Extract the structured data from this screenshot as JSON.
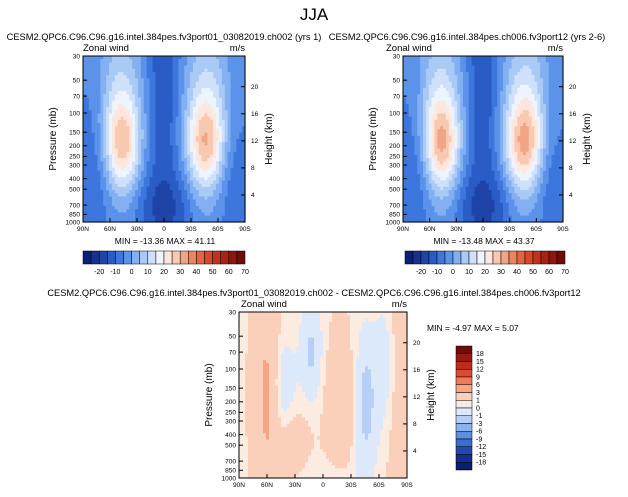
{
  "figure_title": "JJA",
  "chart_data": [
    {
      "type": "heatmap",
      "title": "CESM2.QPC6.C96.C96.g16.intel.384pes.fv3port01_03082019.ch002 (yrs 1)",
      "left_label": "Zonal wind",
      "right_label": "m/s",
      "xlabel": "",
      "ylabel": "Pressure (mb)",
      "y2label": "Height (km)",
      "x_ticks": [
        "90N",
        "60N",
        "30N",
        "0",
        "30S",
        "60S",
        "90S"
      ],
      "y_ticks": [
        "30",
        "50",
        "70",
        "100",
        "150",
        "200",
        "250",
        "300",
        "400",
        "500",
        "700",
        "850",
        "1000"
      ],
      "y2_ticks": [
        "20",
        "16",
        "12",
        "8",
        "4"
      ],
      "stats": "MIN = -13.36   MAX = 41.11",
      "colorbar_labels": [
        "-20",
        "-10",
        "0",
        "10",
        "20",
        "30",
        "40",
        "50",
        "60",
        "70"
      ],
      "contour_levels": [
        -25,
        -20,
        -15,
        -10,
        -5,
        0,
        5,
        10,
        15,
        20,
        25,
        30,
        35,
        40,
        45,
        50,
        55,
        60,
        65,
        70,
        75
      ],
      "min": -13.36,
      "max": 41.11
    },
    {
      "type": "heatmap",
      "title": "CESM2.QPC6.C96.C96.g16.intel.384pes.ch006.fv3port12 (yrs 2-6)",
      "left_label": "Zonal wind",
      "right_label": "m/s",
      "xlabel": "",
      "ylabel": "Pressure (mb)",
      "y2label": "Height (km)",
      "x_ticks": [
        "90N",
        "60N",
        "30N",
        "0",
        "30S",
        "60S",
        "90S"
      ],
      "y_ticks": [
        "30",
        "50",
        "70",
        "100",
        "150",
        "200",
        "250",
        "300",
        "400",
        "500",
        "700",
        "850",
        "1000"
      ],
      "y2_ticks": [
        "20",
        "16",
        "12",
        "8",
        "4"
      ],
      "stats": "MIN = -13.48   MAX = 43.37",
      "colorbar_labels": [
        "-20",
        "-10",
        "0",
        "10",
        "20",
        "30",
        "40",
        "50",
        "60",
        "70"
      ],
      "contour_levels": [
        -25,
        -20,
        -15,
        -10,
        -5,
        0,
        5,
        10,
        15,
        20,
        25,
        30,
        35,
        40,
        45,
        50,
        55,
        60,
        65,
        70,
        75
      ],
      "min": -13.48,
      "max": 43.37
    },
    {
      "type": "heatmap",
      "title": "CESM2.QPC6.C96.C96.g16.intel.384pes.fv3port01_03082019.ch002 - CESM2.QPC6.C96.C96.g16.intel.384pes.ch006.fv3port12",
      "left_label": "Zonal wind",
      "right_label": "m/s",
      "xlabel": "",
      "ylabel": "Pressure (mb)",
      "y2label": "Height (km)",
      "x_ticks": [
        "90N",
        "60N",
        "30N",
        "0",
        "30S",
        "60S",
        "90S"
      ],
      "y_ticks": [
        "30",
        "50",
        "70",
        "100",
        "150",
        "200",
        "250",
        "300",
        "400",
        "500",
        "700",
        "850",
        "1000"
      ],
      "y2_ticks": [
        "20",
        "16",
        "12",
        "8",
        "4"
      ],
      "stats": "MIN = -4.97   MAX =  5.07",
      "colorbar_labels": [
        "18",
        "15",
        "12",
        "9",
        "6",
        "3",
        "1",
        "0",
        "-1",
        "-3",
        "-6",
        "-9",
        "-12",
        "-15",
        "-18"
      ],
      "min": -4.97,
      "max": 5.07
    }
  ],
  "colors": {
    "main_palette": [
      "#0a1f7a",
      "#16318e",
      "#1f44a8",
      "#2a5cc6",
      "#3d77dd",
      "#5c93ea",
      "#83b0f2",
      "#aacaf6",
      "#cfe1fa",
      "#eef4fd",
      "#fde7dc",
      "#f8c8b1",
      "#f2a585",
      "#ec845f",
      "#e5643f",
      "#d9472a",
      "#c5321c",
      "#ab2213",
      "#8f160e",
      "#6d0c08"
    ],
    "diff_palette": [
      "#6b0d0a",
      "#9a1a12",
      "#c12b1d",
      "#dd4a30",
      "#ee7a5a",
      "#f6a585",
      "#fbd0bb",
      "#fcebe0",
      "#dce9fb",
      "#b6cff6",
      "#8cb2ef",
      "#5f8fe3",
      "#3a6cd1",
      "#2248b0",
      "#142f8e",
      "#0a1f70"
    ]
  }
}
